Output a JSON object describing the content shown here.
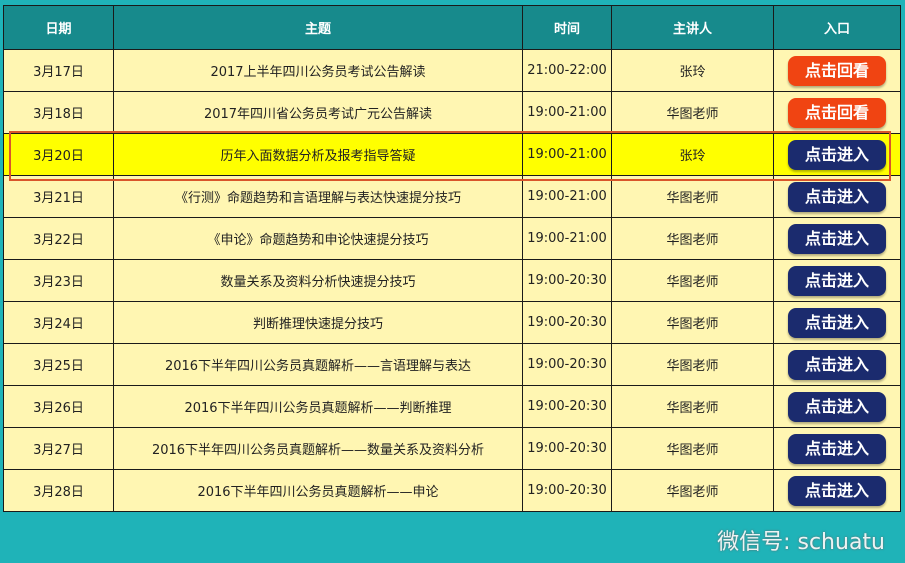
{
  "headers": [
    "日期",
    "主题",
    "时间",
    "主讲人",
    "入口"
  ],
  "rows": [
    {
      "date": "3月17日",
      "topic": "2017上半年四川公务员考试公告解读",
      "time": "21:00-22:00",
      "speaker": "张玲",
      "button": "点击回看",
      "type": "replay"
    },
    {
      "date": "3月18日",
      "topic": "2017年四川省公务员考试广元公告解读",
      "time": "19:00-21:00",
      "speaker": "华图老师",
      "button": "点击回看",
      "type": "replay"
    },
    {
      "date": "3月20日",
      "topic": "历年入面数据分析及报考指导答疑",
      "time": "19:00-21:00",
      "speaker": "张玲",
      "button": "点击进入",
      "type": "enter",
      "highlighted": true
    },
    {
      "date": "3月21日",
      "topic": "《行测》命题趋势和言语理解与表达快速提分技巧",
      "time": "19:00-21:00",
      "speaker": "华图老师",
      "button": "点击进入",
      "type": "enter"
    },
    {
      "date": "3月22日",
      "topic": "《申论》命题趋势和申论快速提分技巧",
      "time": "19:00-21:00",
      "speaker": "华图老师",
      "button": "点击进入",
      "type": "enter"
    },
    {
      "date": "3月23日",
      "topic": "数量关系及资料分析快速提分技巧",
      "time": "19:00-20:30",
      "speaker": "华图老师",
      "button": "点击进入",
      "type": "enter"
    },
    {
      "date": "3月24日",
      "topic": "判断推理快速提分技巧",
      "time": "19:00-20:30",
      "speaker": "华图老师",
      "button": "点击进入",
      "type": "enter"
    },
    {
      "date": "3月25日",
      "topic": "2016下半年四川公务员真题解析——言语理解与表达",
      "time": "19:00-20:30",
      "speaker": "华图老师",
      "button": "点击进入",
      "type": "enter"
    },
    {
      "date": "3月26日",
      "topic": "2016下半年四川公务员真题解析——判断推理",
      "time": "19:00-20:30",
      "speaker": "华图老师",
      "button": "点击进入",
      "type": "enter"
    },
    {
      "date": "3月27日",
      "topic": "2016下半年四川公务员真题解析——数量关系及资料分析",
      "time": "19:00-20:30",
      "speaker": "华图老师",
      "button": "点击进入",
      "type": "enter"
    },
    {
      "date": "3月28日",
      "topic": "2016下半年四川公务员真题解析——申论",
      "time": "19:00-20:30",
      "speaker": "华图老师",
      "button": "点击进入",
      "type": "enter"
    }
  ],
  "watermark": "微信号: schuatu",
  "colors": {
    "header": "#178a8c",
    "row": "#fff6b2",
    "highlight": "#ffff00",
    "replay": "#f04412",
    "enter": "#1b2b6e"
  }
}
